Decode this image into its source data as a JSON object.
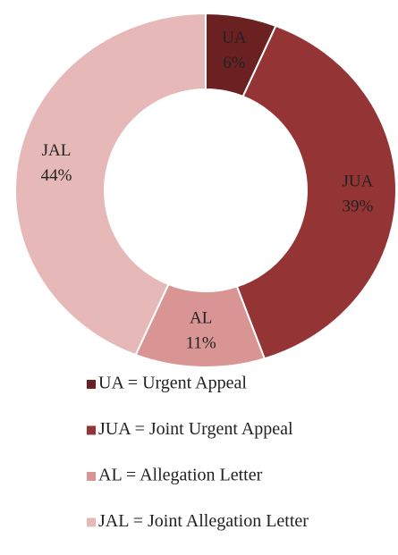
{
  "chart_data": {
    "type": "donut",
    "categories": [
      "UA",
      "JUA",
      "AL",
      "JAL"
    ],
    "values": [
      6,
      39,
      11,
      44
    ],
    "value_labels": [
      "6%",
      "39%",
      "11%",
      "44%"
    ],
    "legend_labels": [
      "UA = Urgent Appeal",
      "JUA = Joint Urgent Appeal",
      "AL = Allegation Letter",
      "JAL = Joint Allegation Letter"
    ],
    "colors": [
      "#6b2022",
      "#943434",
      "#d99594",
      "#e6b9b8"
    ],
    "legend": "bottom"
  }
}
